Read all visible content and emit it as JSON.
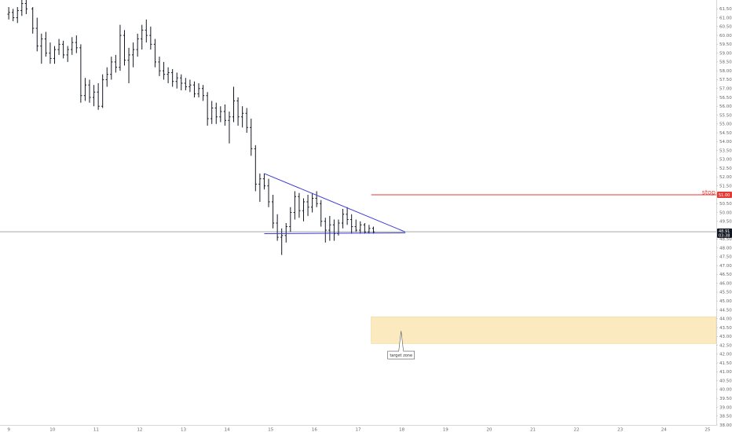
{
  "chart_data": {
    "type": "ohlc",
    "title": "",
    "xlabel": "",
    "ylabel": "",
    "ylim": [
      38.0,
      62.0
    ],
    "xlim": [
      8.8,
      25.2
    ],
    "grid": false,
    "x_ticks": [
      "9",
      "10",
      "11",
      "12",
      "13",
      "14",
      "15",
      "16",
      "17",
      "18",
      "19",
      "20",
      "21",
      "22",
      "23",
      "24",
      "25"
    ],
    "y_ticks": [
      "38.00",
      "38.50",
      "39.00",
      "39.50",
      "40.00",
      "40.50",
      "41.00",
      "41.50",
      "42.00",
      "42.50",
      "43.00",
      "43.50",
      "44.00",
      "44.50",
      "45.00",
      "45.50",
      "46.00",
      "46.50",
      "47.00",
      "47.50",
      "48.00",
      "48.50",
      "49.00",
      "49.50",
      "50.00",
      "50.50",
      "51.00",
      "51.50",
      "52.00",
      "52.50",
      "53.00",
      "53.50",
      "54.00",
      "54.50",
      "55.00",
      "55.50",
      "56.00",
      "56.50",
      "57.00",
      "57.50",
      "58.00",
      "58.50",
      "59.00",
      "59.50",
      "60.00",
      "60.50",
      "61.00",
      "61.50"
    ],
    "price_line": {
      "value": 48.91,
      "label": "48.91",
      "countdown": "03:38",
      "color": "#131722"
    },
    "stop_line": {
      "value": 51.0,
      "label": "51.00",
      "text": "stop",
      "x_start": 17.3,
      "color": "#e53935"
    },
    "target_zone": {
      "low": 42.6,
      "high": 44.1,
      "x_start": 17.3,
      "label": "target zone",
      "color": "#fbe9c0"
    },
    "triangle": {
      "color": "#3b3bd6",
      "upper": [
        [
          14.85,
          52.2
        ],
        [
          18.08,
          48.9
        ]
      ],
      "lower": [
        [
          14.85,
          48.8
        ],
        [
          18.08,
          48.85
        ]
      ]
    },
    "series": [
      {
        "values": [
          [
            9.0,
            61.2,
            61.6,
            60.9,
            61.3
          ],
          [
            9.1,
            61.3,
            61.5,
            60.8,
            61.0
          ],
          [
            9.2,
            61.0,
            61.6,
            60.7,
            61.4
          ],
          [
            9.3,
            61.4,
            62.0,
            61.1,
            61.8
          ],
          [
            9.4,
            61.8,
            62.0,
            61.2,
            61.5
          ],
          [
            9.55,
            61.5,
            61.6,
            60.1,
            60.4
          ],
          [
            9.65,
            60.4,
            61.0,
            59.1,
            59.4
          ],
          [
            9.75,
            59.4,
            60.1,
            58.4,
            59.8
          ],
          [
            9.85,
            59.8,
            60.2,
            58.8,
            59.0
          ],
          [
            9.95,
            59.0,
            59.6,
            58.4,
            58.7
          ],
          [
            10.05,
            58.7,
            59.4,
            58.4,
            59.2
          ],
          [
            10.15,
            59.2,
            59.8,
            58.9,
            59.5
          ],
          [
            10.25,
            59.5,
            59.7,
            58.7,
            58.9
          ],
          [
            10.35,
            58.9,
            59.4,
            58.5,
            59.2
          ],
          [
            10.45,
            59.2,
            59.9,
            58.9,
            59.6
          ],
          [
            10.55,
            59.6,
            60.0,
            59.0,
            59.3
          ],
          [
            10.65,
            59.3,
            59.5,
            56.2,
            56.6
          ],
          [
            10.75,
            56.6,
            57.6,
            56.3,
            57.2
          ],
          [
            10.85,
            57.2,
            57.5,
            56.2,
            56.5
          ],
          [
            10.95,
            56.5,
            57.2,
            56.0,
            56.8
          ],
          [
            11.05,
            56.8,
            57.3,
            55.8,
            56.0
          ],
          [
            11.15,
            56.0,
            57.8,
            55.9,
            57.5
          ],
          [
            11.25,
            57.5,
            58.2,
            57.1,
            57.8
          ],
          [
            11.35,
            57.8,
            58.8,
            57.5,
            58.5
          ],
          [
            11.45,
            58.5,
            58.9,
            57.9,
            58.2
          ],
          [
            11.55,
            58.2,
            60.6,
            58.0,
            60.0
          ],
          [
            11.65,
            60.0,
            60.3,
            58.3,
            58.6
          ],
          [
            11.75,
            58.6,
            59.3,
            57.3,
            58.9
          ],
          [
            11.85,
            58.9,
            59.6,
            58.2,
            59.2
          ],
          [
            11.95,
            59.2,
            60.1,
            58.8,
            59.8
          ],
          [
            12.05,
            59.8,
            60.6,
            59.2,
            60.3
          ],
          [
            12.15,
            60.3,
            60.9,
            59.6,
            60.0
          ],
          [
            12.25,
            60.0,
            60.5,
            59.2,
            59.5
          ],
          [
            12.35,
            59.5,
            59.8,
            58.2,
            58.5
          ],
          [
            12.45,
            58.5,
            58.8,
            57.7,
            58.0
          ],
          [
            12.55,
            58.0,
            58.5,
            57.5,
            57.8
          ],
          [
            12.65,
            57.8,
            58.2,
            57.3,
            57.9
          ],
          [
            12.75,
            57.9,
            58.1,
            57.1,
            57.4
          ],
          [
            12.85,
            57.4,
            57.9,
            57.0,
            57.6
          ],
          [
            12.95,
            57.6,
            57.8,
            56.9,
            57.3
          ],
          [
            13.05,
            57.3,
            57.6,
            56.9,
            57.1
          ],
          [
            13.15,
            57.1,
            57.5,
            56.8,
            57.2
          ],
          [
            13.25,
            57.2,
            57.4,
            56.5,
            56.7
          ],
          [
            13.35,
            56.7,
            57.3,
            56.5,
            57.0
          ],
          [
            13.45,
            57.0,
            57.2,
            56.3,
            56.6
          ],
          [
            13.55,
            56.6,
            56.8,
            54.9,
            55.3
          ],
          [
            13.65,
            55.3,
            56.3,
            55.0,
            55.9
          ],
          [
            13.75,
            55.9,
            56.2,
            55.0,
            55.4
          ],
          [
            13.85,
            55.4,
            56.0,
            55.1,
            55.7
          ],
          [
            13.95,
            55.7,
            56.1,
            54.9,
            55.2
          ],
          [
            14.05,
            55.2,
            55.7,
            53.9,
            55.4
          ],
          [
            14.15,
            55.4,
            57.1,
            55.1,
            56.3
          ],
          [
            14.25,
            56.3,
            56.5,
            54.9,
            55.4
          ],
          [
            14.35,
            55.4,
            56.0,
            54.8,
            55.6
          ],
          [
            14.45,
            55.6,
            55.9,
            54.5,
            54.8
          ],
          [
            14.55,
            54.8,
            55.3,
            53.2,
            53.6
          ],
          [
            14.65,
            53.6,
            53.8,
            51.2,
            51.6
          ],
          [
            14.75,
            51.6,
            52.2,
            50.6,
            51.9
          ],
          [
            14.85,
            51.9,
            52.2,
            51.3,
            51.5
          ],
          [
            14.95,
            51.5,
            51.9,
            50.3,
            50.6
          ],
          [
            15.05,
            50.6,
            51.0,
            49.1,
            49.4
          ],
          [
            15.15,
            49.4,
            49.9,
            48.4,
            48.6
          ],
          [
            15.25,
            48.6,
            49.1,
            47.6,
            48.7
          ],
          [
            15.35,
            48.7,
            49.4,
            48.3,
            49.2
          ],
          [
            15.45,
            49.2,
            50.3,
            48.9,
            50.0
          ],
          [
            15.55,
            50.0,
            51.2,
            49.6,
            50.9
          ],
          [
            15.65,
            50.9,
            51.1,
            49.7,
            50.1
          ],
          [
            15.75,
            50.1,
            50.8,
            49.5,
            50.6
          ],
          [
            15.85,
            50.6,
            51.0,
            49.8,
            50.3
          ],
          [
            15.95,
            50.3,
            51.1,
            50.0,
            50.8
          ],
          [
            16.05,
            50.8,
            51.2,
            50.3,
            50.5
          ],
          [
            16.15,
            50.5,
            50.7,
            49.2,
            49.5
          ],
          [
            16.25,
            49.5,
            49.7,
            48.3,
            49.0
          ],
          [
            16.35,
            49.0,
            49.8,
            48.4,
            49.3
          ],
          [
            16.45,
            49.3,
            49.6,
            48.4,
            48.8
          ],
          [
            16.55,
            48.8,
            49.6,
            48.7,
            49.4
          ],
          [
            16.65,
            49.4,
            50.2,
            49.1,
            49.9
          ],
          [
            16.75,
            49.9,
            50.3,
            49.3,
            49.6
          ],
          [
            16.85,
            49.6,
            49.9,
            48.8,
            49.2
          ],
          [
            16.95,
            49.2,
            49.6,
            48.9,
            49.0
          ],
          [
            17.05,
            49.0,
            49.5,
            48.8,
            49.3
          ],
          [
            17.15,
            49.3,
            49.4,
            48.8,
            48.9
          ],
          [
            17.25,
            48.9,
            49.3,
            48.8,
            49.1
          ],
          [
            17.35,
            49.1,
            49.2,
            48.8,
            48.9
          ]
        ]
      }
    ]
  }
}
